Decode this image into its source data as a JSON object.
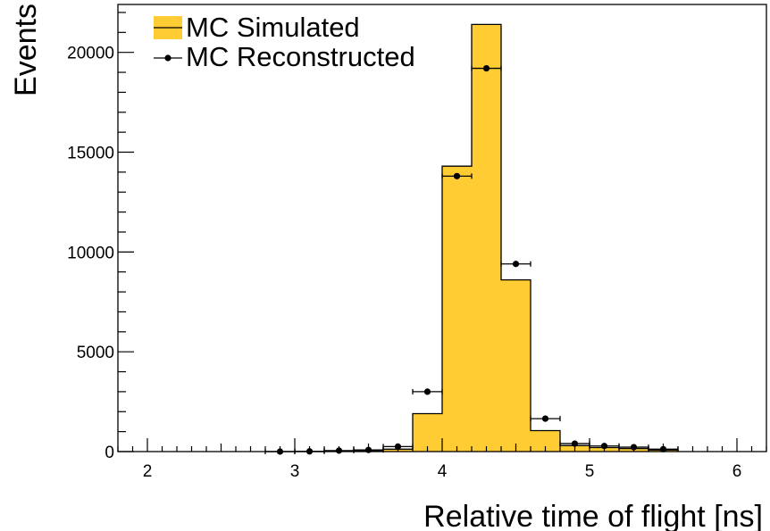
{
  "chart_data": {
    "type": "bar",
    "title": "",
    "xlabel": "Relative time of flight [ns]",
    "ylabel": "Events",
    "xlim": [
      1.8,
      6.2
    ],
    "ylim": [
      0,
      22400
    ],
    "x_ticks": [
      2,
      3,
      4,
      5,
      6
    ],
    "y_ticks": [
      0,
      5000,
      10000,
      15000,
      20000
    ],
    "x_tick_labels": [
      "2",
      "3",
      "4",
      "5",
      "6"
    ],
    "y_tick_labels": [
      "0",
      "5000",
      "10000",
      "15000",
      "20000"
    ],
    "bin_edges": [
      2.8,
      3.0,
      3.2,
      3.4,
      3.6,
      3.8,
      4.0,
      4.2,
      4.4,
      4.6,
      4.8,
      5.0,
      5.2,
      5.4,
      5.6
    ],
    "series": [
      {
        "name": "MC Simulated",
        "kind": "histogram",
        "color": "#ffcc33",
        "values": [
          0,
          0,
          10,
          50,
          120,
          1900,
          14300,
          21400,
          8600,
          1050,
          300,
          200,
          150,
          80
        ]
      },
      {
        "name": "MC Reconstructed",
        "kind": "points",
        "color": "#000000",
        "x": [
          2.9,
          3.1,
          3.3,
          3.5,
          3.7,
          3.9,
          4.1,
          4.3,
          4.5,
          4.7,
          4.9,
          5.1,
          5.3,
          5.5
        ],
        "values": [
          0,
          10,
          50,
          80,
          250,
          3000,
          13800,
          19200,
          9400,
          1650,
          400,
          280,
          220,
          120
        ],
        "x_error": 0.1
      }
    ],
    "legend": {
      "placement": "top-left"
    },
    "grid": false
  }
}
